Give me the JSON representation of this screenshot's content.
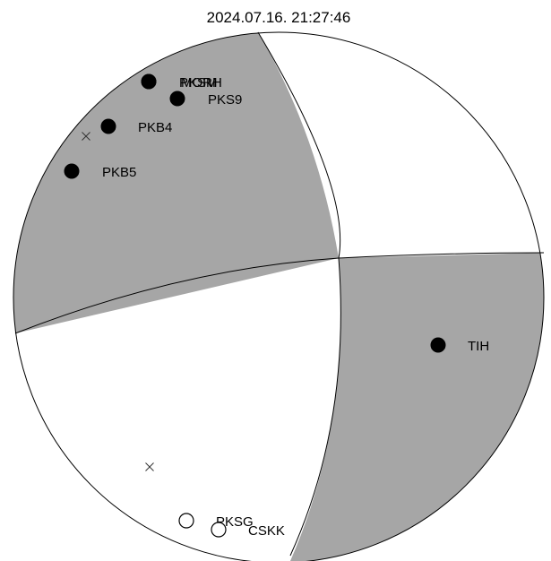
{
  "title": "2024.07.16. 21:27:46",
  "colors": {
    "compressional_fill": "#a6a6a6",
    "dilatational_fill": "#ffffff",
    "outline": "#000000",
    "up_marker": "#000000",
    "down_marker": "#ffffff"
  },
  "stations": [
    {
      "name": "PKSM",
      "polarity": "up"
    },
    {
      "name": "MORH",
      "polarity": "up"
    },
    {
      "name": "PKS9",
      "polarity": "up"
    },
    {
      "name": "PKB4",
      "polarity": "up"
    },
    {
      "name": "PKB5",
      "polarity": "up"
    },
    {
      "name": "TIH",
      "polarity": "up"
    },
    {
      "name": "PKSG",
      "polarity": "down"
    },
    {
      "name": "CSKK",
      "polarity": "down"
    }
  ],
  "axis_markers": [
    {
      "name": "P-axis"
    },
    {
      "name": "T-axis"
    }
  ]
}
